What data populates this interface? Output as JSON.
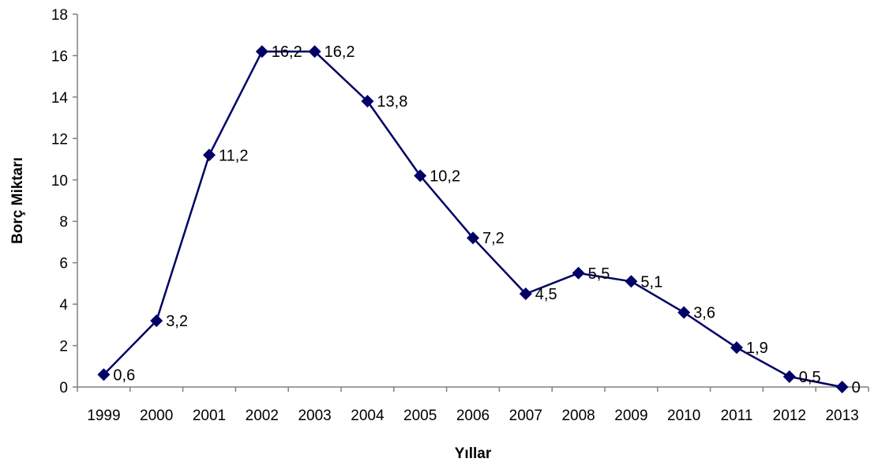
{
  "chart_data": {
    "type": "line",
    "title": "",
    "xlabel": "Yıllar",
    "ylabel": "Borç Miktarı",
    "categories": [
      "1999",
      "2000",
      "2001",
      "2002",
      "2003",
      "2004",
      "2005",
      "2006",
      "2007",
      "2008",
      "2009",
      "2010",
      "2011",
      "2012",
      "2013"
    ],
    "values": [
      0.6,
      3.2,
      11.2,
      16.2,
      16.2,
      13.8,
      10.2,
      7.2,
      4.5,
      5.5,
      5.1,
      3.6,
      1.9,
      0.5,
      0
    ],
    "data_labels": [
      "0,6",
      "3,2",
      "11,2",
      "16,2",
      "16,2",
      "13,8",
      "10,2",
      "7,2",
      "4,5",
      "5,5",
      "5,1",
      "3,6",
      "1,9",
      "0,5",
      "0"
    ],
    "y_ticks": [
      "0",
      "2",
      "4",
      "6",
      "8",
      "10",
      "12",
      "14",
      "16",
      "18"
    ],
    "ylim": [
      0,
      18
    ],
    "grid": false,
    "legend": "none",
    "series_color": "#000066",
    "marker": "diamond"
  }
}
